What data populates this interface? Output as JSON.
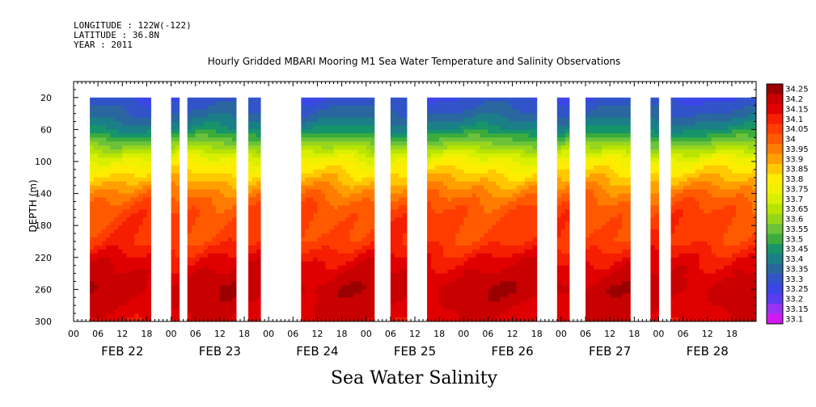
{
  "header": {
    "longitude": "LONGITUDE : 122W(-122)",
    "latitude": "LATITUDE : 36.8N",
    "year": "YEAR : 2011"
  },
  "chart_data": {
    "type": "heatmap",
    "title": "Hourly Gridded MBARI Mooring M1 Sea Water Temperature and Salinity Observations",
    "variable_label": "Sea Water Salinity",
    "ylabel": "DEPTH (m)",
    "xlabel": "",
    "x_start": "FEB 22 2011 00:00",
    "x_unit": "hours",
    "xlim": [
      0,
      168
    ],
    "ylim": [
      300,
      0
    ],
    "y_reversed": true,
    "y_ticks": [
      20,
      60,
      100,
      140,
      180,
      220,
      260,
      300
    ],
    "x_tick_labels": [
      "00",
      "06",
      "12",
      "18",
      "00",
      "06",
      "12",
      "18",
      "00",
      "06",
      "12",
      "18",
      "00",
      "06",
      "12",
      "18",
      "00",
      "06",
      "12",
      "18",
      "00",
      "06",
      "12",
      "18",
      "00",
      "06",
      "12",
      "18"
    ],
    "day_labels": [
      "FEB 22",
      "FEB 23",
      "FEB 24",
      "FEB 25",
      "FEB 26",
      "FEB 27",
      "FEB 28"
    ],
    "data_depth_range": [
      20,
      300
    ],
    "data_intervals_hours": [
      [
        4,
        19
      ],
      [
        24,
        26
      ],
      [
        28,
        40
      ],
      [
        43,
        46
      ],
      [
        56,
        74
      ],
      [
        78,
        82
      ],
      [
        87,
        114
      ],
      [
        119,
        122
      ],
      [
        126,
        137
      ],
      [
        142,
        144
      ],
      [
        147,
        168
      ]
    ],
    "depth_profile": [
      {
        "depth": 20,
        "salinity": 33.3
      },
      {
        "depth": 40,
        "salinity": 33.36
      },
      {
        "depth": 60,
        "salinity": 33.45
      },
      {
        "depth": 80,
        "salinity": 33.62
      },
      {
        "depth": 100,
        "salinity": 33.78
      },
      {
        "depth": 120,
        "salinity": 33.88
      },
      {
        "depth": 140,
        "salinity": 33.98
      },
      {
        "depth": 160,
        "salinity": 34.05
      },
      {
        "depth": 200,
        "salinity": 34.08
      },
      {
        "depth": 220,
        "salinity": 34.15
      },
      {
        "depth": 240,
        "salinity": 34.2
      },
      {
        "depth": 260,
        "salinity": 34.23
      },
      {
        "depth": 300,
        "salinity": 34.18
      }
    ],
    "colorbar": {
      "levels": [
        34.25,
        34.2,
        34.15,
        34.1,
        34.05,
        34,
        33.95,
        33.9,
        33.85,
        33.8,
        33.75,
        33.7,
        33.65,
        33.6,
        33.55,
        33.5,
        33.45,
        33.4,
        33.35,
        33.3,
        33.25,
        33.2,
        33.15,
        33.1
      ],
      "level_labels": [
        "34.25",
        "34.2",
        "34.15",
        "34.1",
        "34.05",
        "34",
        "33.95",
        "33.9",
        "33.85",
        "33.8",
        "33.75",
        "33.7",
        "33.65",
        "33.6",
        "33.55",
        "33.5",
        "33.45",
        "33.4",
        "33.35",
        "33.3",
        "33.25",
        "33.2",
        "33.15",
        "33.1"
      ],
      "colors": [
        "#9b0000",
        "#c80000",
        "#e00000",
        "#f51e00",
        "#ff3c00",
        "#ff5a00",
        "#ff7c00",
        "#ff9f00",
        "#ffc800",
        "#ffec00",
        "#f0f000",
        "#d8ef00",
        "#b8e400",
        "#98d61e",
        "#6cc33a",
        "#3cad3c",
        "#18946a",
        "#1a7f86",
        "#2a679e",
        "#3154c8",
        "#3c46e6",
        "#5a3cf0",
        "#9a32f2",
        "#d21af0"
      ]
    }
  }
}
